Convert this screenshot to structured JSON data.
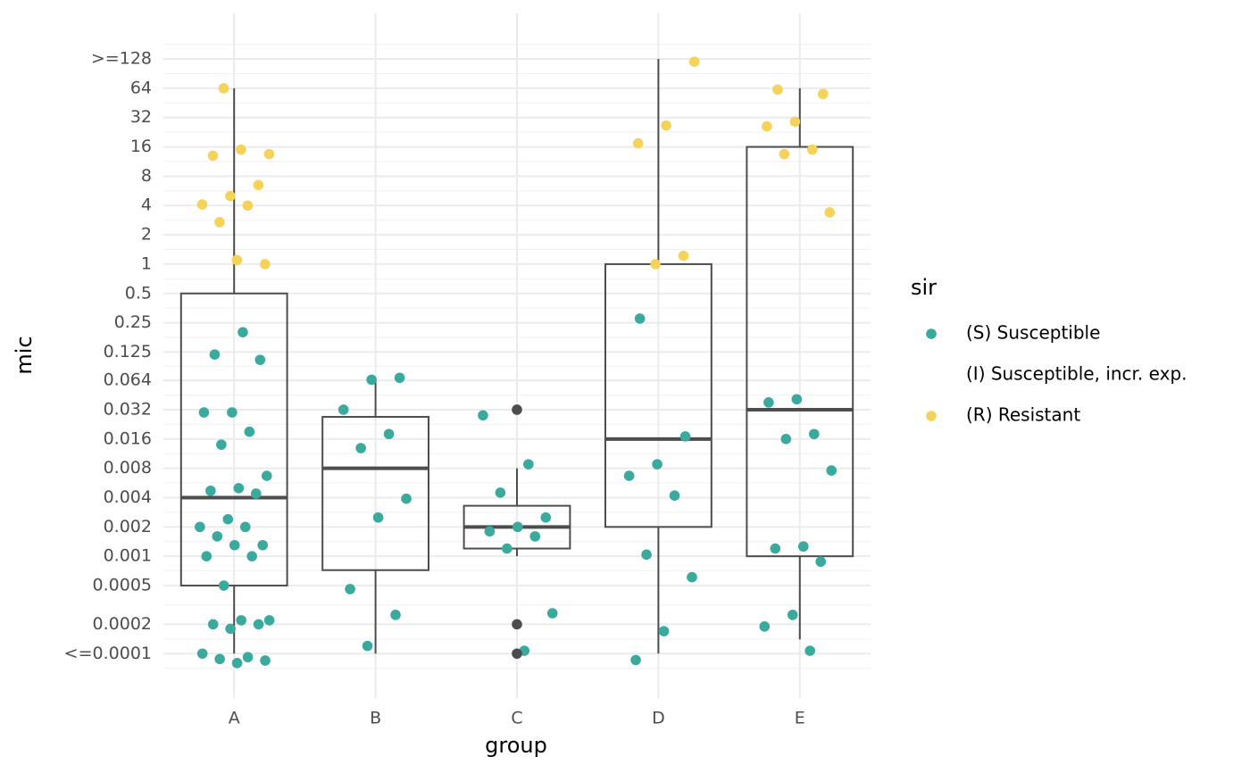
{
  "chart_data": {
    "type": "boxplot",
    "x_label": "group",
    "y_label": "mic",
    "legend_title": "sir",
    "legend_position": "right",
    "grid": true,
    "log_scale": true,
    "categories": [
      "A",
      "B",
      "C",
      "D",
      "E"
    ],
    "ylim": [
      3.5e-05,
      376
    ],
    "yticks": [
      {
        "value": 0.0001,
        "label": "<=0.0001"
      },
      0.0002,
      0.0005,
      0.001,
      0.002,
      0.004,
      0.008,
      0.016,
      0.032,
      0.064,
      0.125,
      0.25,
      0.5,
      1,
      2,
      4,
      8,
      16,
      32,
      64,
      {
        "value": 128,
        "label": ">=128"
      }
    ],
    "box_color": "#4d4d4d",
    "boxes": [
      {
        "low": 0.0001,
        "q1": 0.0005,
        "median": 0.004,
        "q3": 0.5,
        "high": 64,
        "outliers": []
      },
      {
        "low": 0.0001,
        "q1": 0.00072,
        "median": 0.008,
        "q3": 0.027,
        "high": 0.064,
        "outliers": []
      },
      {
        "low": 0.001,
        "q1": 0.0012,
        "median": 0.002,
        "q3": 0.0033,
        "high": 0.008,
        "outliers": [
          0.032,
          0.0002,
          0.0001
        ]
      },
      {
        "low": 0.0001,
        "q1": 0.002,
        "median": 0.016,
        "q3": 1,
        "high": 128,
        "outliers": []
      },
      {
        "low": 0.00014,
        "q1": 0.001,
        "median": 0.032,
        "q3": 16,
        "high": 64,
        "outliers": []
      }
    ],
    "series": [
      {
        "name": "(S) Susceptible",
        "color": "#3aaa9e",
        "values": [
          [
            0.2,
            0.118,
            0.104,
            0.03,
            0.03,
            0.019,
            0.014,
            0.0067,
            0.005,
            0.0047,
            0.0044,
            0.0024,
            0.002,
            0.002,
            0.0016,
            0.0013,
            0.0013,
            0.001,
            0.001,
            0.0005,
            0.00022,
            0.00022,
            0.0002,
            0.0002,
            0.00018,
            0.0001,
            9.2e-05,
            8.8e-05,
            8.5e-05,
            8e-05
          ],
          [
            0.068,
            0.065,
            0.032,
            0.018,
            0.0129,
            0.0039,
            0.0025,
            0.00046,
            0.00025,
            0.00012
          ],
          [
            0.028,
            0.0088,
            0.0045,
            0.0025,
            0.002,
            0.0018,
            0.0016,
            0.0012,
            0.00026,
            0.000107
          ],
          [
            0.276,
            0.017,
            0.0088,
            0.0067,
            0.0042,
            0.00104,
            0.00061,
            0.00017,
            8.6e-05
          ],
          [
            0.041,
            0.038,
            0.018,
            0.016,
            0.0076,
            0.00126,
            0.0012,
            0.00088,
            0.00025,
            0.00019,
            0.000107
          ]
        ]
      },
      {
        "name": "(I) Susceptible, incr. exp.",
        "values": [
          [],
          [],
          [],
          [],
          []
        ]
      },
      {
        "name": "(R) Resistant",
        "color": "#f5d35a",
        "values": [
          [
            64,
            13.5,
            15,
            13,
            6.5,
            5,
            4.1,
            4,
            2.7,
            1,
            1.1
          ],
          [],
          [],
          [
            120,
            26.5,
            17.4,
            1.22,
            1
          ],
          [
            62,
            56,
            29,
            26,
            15,
            13.5,
            3.4
          ]
        ]
      }
    ]
  }
}
